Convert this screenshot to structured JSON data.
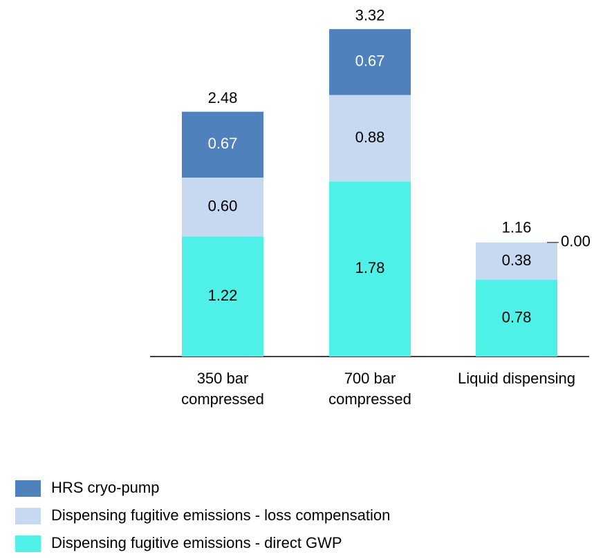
{
  "chart_data": {
    "type": "stacked_bar",
    "categories": [
      "350 bar\ncompressed",
      "700 bar\ncompressed",
      "Liquid dispensing"
    ],
    "series": [
      {
        "name": "HRS cryo-pump",
        "color": "#4f81bd",
        "label_color": "#ffffff",
        "values": [
          0.67,
          0.67,
          0
        ],
        "value_labels": [
          "0.67",
          "0.67",
          "0.00"
        ]
      },
      {
        "name": "Dispensing fugitive emissions - loss compensation",
        "color": "#c6d9f1",
        "label_color": "#000000",
        "values": [
          0.6,
          0.88,
          0.38
        ],
        "value_labels": [
          "0.60",
          "0.88",
          "0.38"
        ]
      },
      {
        "name": "Dispensing fugitive emissions - direct GWP",
        "color": "#4ff0e8",
        "label_color": "#000000",
        "values": [
          1.22,
          1.78,
          0.78
        ]
      }
    ],
    "totals": [
      2.48,
      3.32,
      1.16
    ]
  }
}
